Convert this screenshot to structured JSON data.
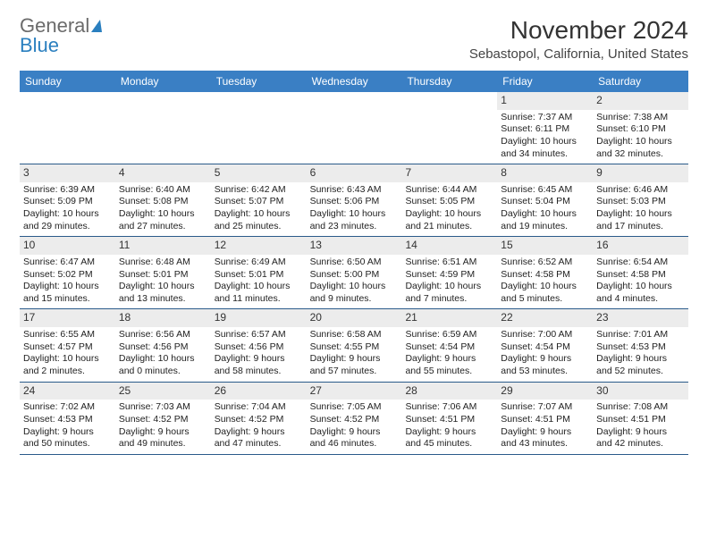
{
  "logo": {
    "text1": "General",
    "text2": "Blue"
  },
  "title": "November 2024",
  "location": "Sebastopol, California, United States",
  "header_bg": "#3a7fc4",
  "dayNames": [
    "Sunday",
    "Monday",
    "Tuesday",
    "Wednesday",
    "Thursday",
    "Friday",
    "Saturday"
  ],
  "weeks": [
    [
      {
        "date": "",
        "sunrise": "",
        "sunset": "",
        "daylight": ""
      },
      {
        "date": "",
        "sunrise": "",
        "sunset": "",
        "daylight": ""
      },
      {
        "date": "",
        "sunrise": "",
        "sunset": "",
        "daylight": ""
      },
      {
        "date": "",
        "sunrise": "",
        "sunset": "",
        "daylight": ""
      },
      {
        "date": "",
        "sunrise": "",
        "sunset": "",
        "daylight": ""
      },
      {
        "date": "1",
        "sunrise": "Sunrise: 7:37 AM",
        "sunset": "Sunset: 6:11 PM",
        "daylight": "Daylight: 10 hours and 34 minutes."
      },
      {
        "date": "2",
        "sunrise": "Sunrise: 7:38 AM",
        "sunset": "Sunset: 6:10 PM",
        "daylight": "Daylight: 10 hours and 32 minutes."
      }
    ],
    [
      {
        "date": "3",
        "sunrise": "Sunrise: 6:39 AM",
        "sunset": "Sunset: 5:09 PM",
        "daylight": "Daylight: 10 hours and 29 minutes."
      },
      {
        "date": "4",
        "sunrise": "Sunrise: 6:40 AM",
        "sunset": "Sunset: 5:08 PM",
        "daylight": "Daylight: 10 hours and 27 minutes."
      },
      {
        "date": "5",
        "sunrise": "Sunrise: 6:42 AM",
        "sunset": "Sunset: 5:07 PM",
        "daylight": "Daylight: 10 hours and 25 minutes."
      },
      {
        "date": "6",
        "sunrise": "Sunrise: 6:43 AM",
        "sunset": "Sunset: 5:06 PM",
        "daylight": "Daylight: 10 hours and 23 minutes."
      },
      {
        "date": "7",
        "sunrise": "Sunrise: 6:44 AM",
        "sunset": "Sunset: 5:05 PM",
        "daylight": "Daylight: 10 hours and 21 minutes."
      },
      {
        "date": "8",
        "sunrise": "Sunrise: 6:45 AM",
        "sunset": "Sunset: 5:04 PM",
        "daylight": "Daylight: 10 hours and 19 minutes."
      },
      {
        "date": "9",
        "sunrise": "Sunrise: 6:46 AM",
        "sunset": "Sunset: 5:03 PM",
        "daylight": "Daylight: 10 hours and 17 minutes."
      }
    ],
    [
      {
        "date": "10",
        "sunrise": "Sunrise: 6:47 AM",
        "sunset": "Sunset: 5:02 PM",
        "daylight": "Daylight: 10 hours and 15 minutes."
      },
      {
        "date": "11",
        "sunrise": "Sunrise: 6:48 AM",
        "sunset": "Sunset: 5:01 PM",
        "daylight": "Daylight: 10 hours and 13 minutes."
      },
      {
        "date": "12",
        "sunrise": "Sunrise: 6:49 AM",
        "sunset": "Sunset: 5:01 PM",
        "daylight": "Daylight: 10 hours and 11 minutes."
      },
      {
        "date": "13",
        "sunrise": "Sunrise: 6:50 AM",
        "sunset": "Sunset: 5:00 PM",
        "daylight": "Daylight: 10 hours and 9 minutes."
      },
      {
        "date": "14",
        "sunrise": "Sunrise: 6:51 AM",
        "sunset": "Sunset: 4:59 PM",
        "daylight": "Daylight: 10 hours and 7 minutes."
      },
      {
        "date": "15",
        "sunrise": "Sunrise: 6:52 AM",
        "sunset": "Sunset: 4:58 PM",
        "daylight": "Daylight: 10 hours and 5 minutes."
      },
      {
        "date": "16",
        "sunrise": "Sunrise: 6:54 AM",
        "sunset": "Sunset: 4:58 PM",
        "daylight": "Daylight: 10 hours and 4 minutes."
      }
    ],
    [
      {
        "date": "17",
        "sunrise": "Sunrise: 6:55 AM",
        "sunset": "Sunset: 4:57 PM",
        "daylight": "Daylight: 10 hours and 2 minutes."
      },
      {
        "date": "18",
        "sunrise": "Sunrise: 6:56 AM",
        "sunset": "Sunset: 4:56 PM",
        "daylight": "Daylight: 10 hours and 0 minutes."
      },
      {
        "date": "19",
        "sunrise": "Sunrise: 6:57 AM",
        "sunset": "Sunset: 4:56 PM",
        "daylight": "Daylight: 9 hours and 58 minutes."
      },
      {
        "date": "20",
        "sunrise": "Sunrise: 6:58 AM",
        "sunset": "Sunset: 4:55 PM",
        "daylight": "Daylight: 9 hours and 57 minutes."
      },
      {
        "date": "21",
        "sunrise": "Sunrise: 6:59 AM",
        "sunset": "Sunset: 4:54 PM",
        "daylight": "Daylight: 9 hours and 55 minutes."
      },
      {
        "date": "22",
        "sunrise": "Sunrise: 7:00 AM",
        "sunset": "Sunset: 4:54 PM",
        "daylight": "Daylight: 9 hours and 53 minutes."
      },
      {
        "date": "23",
        "sunrise": "Sunrise: 7:01 AM",
        "sunset": "Sunset: 4:53 PM",
        "daylight": "Daylight: 9 hours and 52 minutes."
      }
    ],
    [
      {
        "date": "24",
        "sunrise": "Sunrise: 7:02 AM",
        "sunset": "Sunset: 4:53 PM",
        "daylight": "Daylight: 9 hours and 50 minutes."
      },
      {
        "date": "25",
        "sunrise": "Sunrise: 7:03 AM",
        "sunset": "Sunset: 4:52 PM",
        "daylight": "Daylight: 9 hours and 49 minutes."
      },
      {
        "date": "26",
        "sunrise": "Sunrise: 7:04 AM",
        "sunset": "Sunset: 4:52 PM",
        "daylight": "Daylight: 9 hours and 47 minutes."
      },
      {
        "date": "27",
        "sunrise": "Sunrise: 7:05 AM",
        "sunset": "Sunset: 4:52 PM",
        "daylight": "Daylight: 9 hours and 46 minutes."
      },
      {
        "date": "28",
        "sunrise": "Sunrise: 7:06 AM",
        "sunset": "Sunset: 4:51 PM",
        "daylight": "Daylight: 9 hours and 45 minutes."
      },
      {
        "date": "29",
        "sunrise": "Sunrise: 7:07 AM",
        "sunset": "Sunset: 4:51 PM",
        "daylight": "Daylight: 9 hours and 43 minutes."
      },
      {
        "date": "30",
        "sunrise": "Sunrise: 7:08 AM",
        "sunset": "Sunset: 4:51 PM",
        "daylight": "Daylight: 9 hours and 42 minutes."
      }
    ]
  ]
}
